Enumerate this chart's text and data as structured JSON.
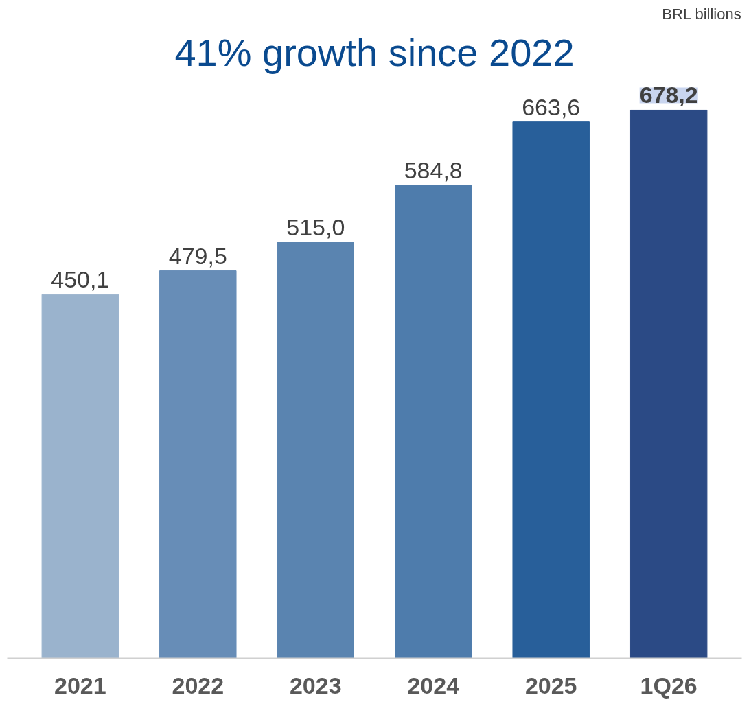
{
  "chart_data": {
    "type": "bar",
    "title": "41% growth since 2022",
    "annotations": [
      "BRL billions"
    ],
    "categories": [
      "2021",
      "2022",
      "2023",
      "2024",
      "2025",
      "1Q26"
    ],
    "values": [
      450.1,
      479.5,
      515.0,
      584.8,
      663.6,
      678.2
    ],
    "value_labels": [
      "450,1",
      "479,5",
      "515,0",
      "584,8",
      "663,6",
      "678,2"
    ],
    "colors": [
      "#9ab3cd",
      "#678db7",
      "#5a84b0",
      "#4e7cac",
      "#285f9a",
      "#2b4a85"
    ],
    "grid": false
  }
}
